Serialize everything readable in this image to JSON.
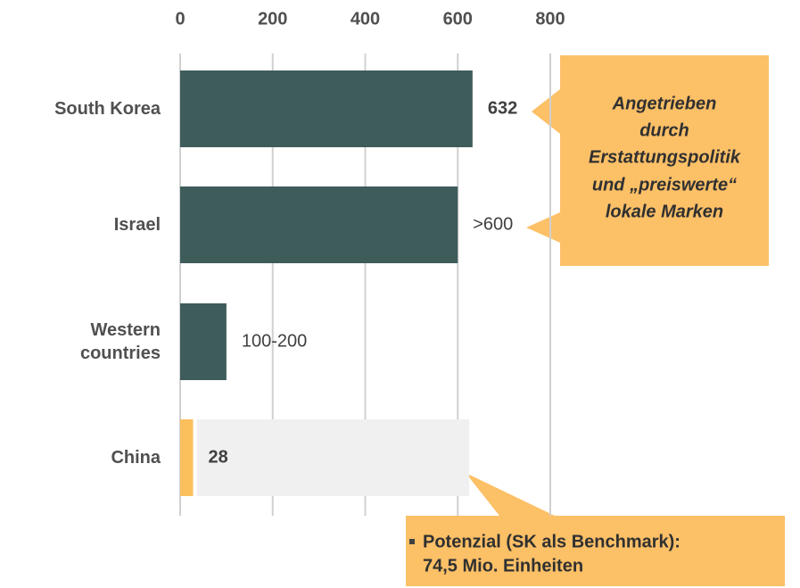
{
  "chart_data": {
    "type": "bar",
    "orientation": "horizontal",
    "categories": [
      "South Korea",
      "Israel",
      "Western countries",
      "China"
    ],
    "values": [
      632,
      600,
      100,
      28
    ],
    "value_labels": [
      "632",
      ">600",
      "100-200",
      "28"
    ],
    "value_label_weights": [
      "bold",
      "normal",
      "normal",
      "bold"
    ],
    "colors": [
      "#3d5c5a",
      "#3d5c5a",
      "#3d5c5a",
      "#fbbf5e"
    ],
    "benchmark": 625,
    "benchmark_color": "#f0f0f0",
    "xlim": [
      0,
      800
    ],
    "xticks": [
      0,
      200,
      400,
      600,
      800
    ],
    "grid": true,
    "annotations": [
      {
        "lines": [
          "Angetrieben",
          "durch",
          "Erstattungspolitik",
          "und „preiswerte“",
          "lokale Marken"
        ],
        "color": "#fcc067"
      },
      {
        "lines": [
          "Potenzial (SK als Benchmark):",
          "74,5 Mio. Einheiten"
        ],
        "color": "#fcc067"
      }
    ]
  }
}
